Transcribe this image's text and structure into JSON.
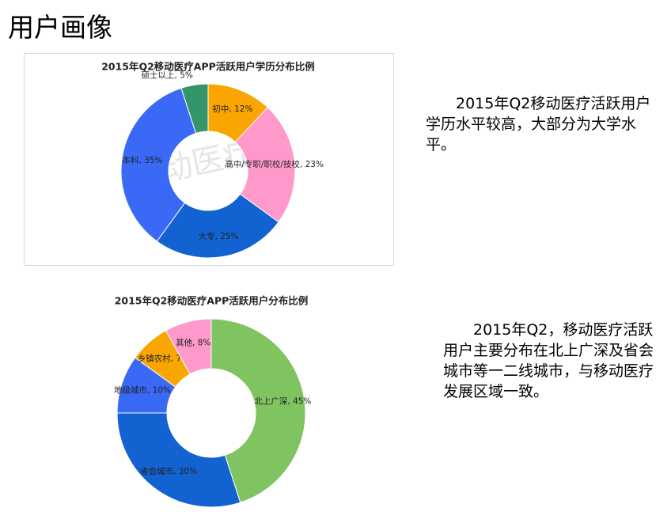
{
  "page_title": "用户画像",
  "chart_data": [
    {
      "type": "donut",
      "title": "2015年Q2移动医疗APP活跃用户学历分布比例",
      "watermark": "移动医疗圈",
      "categories": [
        "初中",
        "高中/专职/职校/技校",
        "大专",
        "本科",
        "硕士以上"
      ],
      "values": [
        12,
        23,
        25,
        35,
        5
      ],
      "value_labels": [
        "初中, 12%",
        "高中/专职/职校/技校, 23%",
        "大专, 25%",
        "本科, 35%",
        "硕士以上, 5%"
      ],
      "colors": [
        "#f9a602",
        "#ff99cc",
        "#1262d1",
        "#3a6af5",
        "#35956a"
      ]
    },
    {
      "type": "donut",
      "title": "2015年Q2移动医疗APP活跃用户分布比例",
      "categories": [
        "北上广深",
        "省会城市",
        "地级城市",
        "乡镇农村",
        "其他"
      ],
      "values": [
        45,
        30,
        10,
        7,
        8
      ],
      "value_labels": [
        "北上广深, 45%",
        "省会城市, 30%",
        "地级城市, 10%",
        "乡镇农村, 7%",
        "其他, 8%"
      ],
      "colors": [
        "#80c462",
        "#1262d1",
        "#3a6af5",
        "#f9a602",
        "#ff99cc"
      ]
    }
  ],
  "notes": [
    "2015年Q2移动医疗活跃用户学历水平较高，大部分为大学水平。",
    "2015年Q2，移动医疗活跃用户主要分布在北上广深及省会城市等一二线城市，与移动医疗发展区域一致。"
  ]
}
